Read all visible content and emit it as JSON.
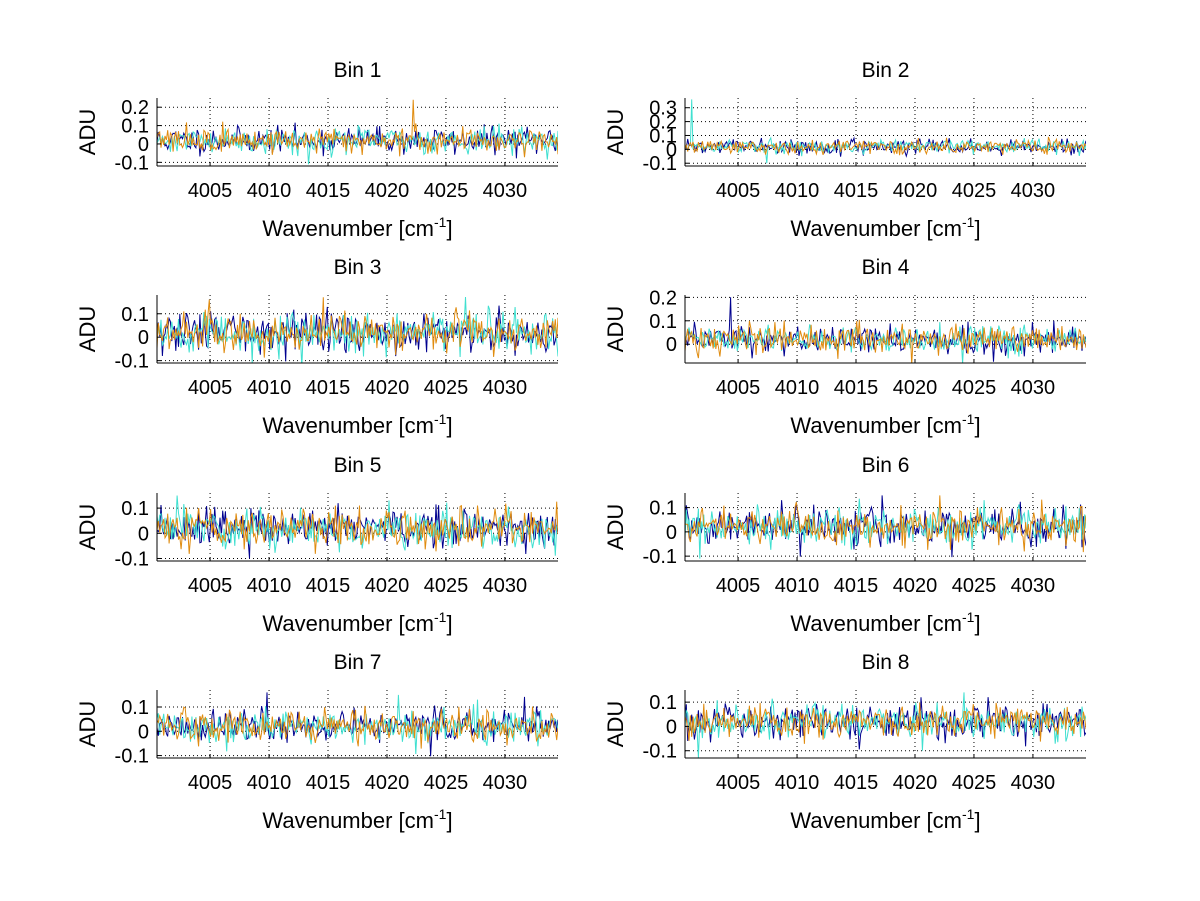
{
  "chart_data": [
    {
      "type": "line",
      "title": "Bin 1",
      "xlabel": "Wavenumber [cm",
      "xlabel_superscript": "-1",
      "xlabel_suffix": "]",
      "ylabel": "ADU",
      "xlim": [
        4000.5,
        4034.5
      ],
      "ylim": [
        -0.12,
        0.25
      ],
      "xticks": [
        4005,
        4010,
        4015,
        4020,
        4025,
        4030
      ],
      "yticks": [
        -0.1,
        0,
        0.1,
        0.2
      ],
      "ytick_labels": [
        "-0.1",
        "0",
        "0.1",
        "0.2"
      ],
      "grid": true,
      "series_count": 3,
      "noise_amplitude": 0.05,
      "seed": 11,
      "spikes": [
        {
          "series": 2,
          "x": 4022.2,
          "value": 0.24
        },
        {
          "series": 1,
          "x": 4013.4,
          "value": -0.11
        }
      ]
    },
    {
      "type": "line",
      "title": "Bin 2",
      "xlabel": "Wavenumber [cm",
      "xlabel_superscript": "-1",
      "xlabel_suffix": "]",
      "ylabel": "ADU",
      "xlim": [
        4000.5,
        4034.5
      ],
      "ylim": [
        -0.12,
        0.37
      ],
      "xticks": [
        4005,
        4010,
        4015,
        4020,
        4025,
        4030
      ],
      "yticks": [
        -0.1,
        0,
        0.1,
        0.2,
        0.3
      ],
      "ytick_labels": [
        "-0.1",
        "0",
        "0.1",
        "0.2",
        "0.3"
      ],
      "grid": true,
      "series_count": 3,
      "noise_amplitude": 0.035,
      "seed": 22,
      "spikes": [
        {
          "series": 1,
          "x": 4001.1,
          "value": 0.36
        },
        {
          "series": 1,
          "x": 4007.4,
          "value": -0.1
        }
      ]
    },
    {
      "type": "line",
      "title": "Bin 3",
      "xlabel": "Wavenumber [cm",
      "xlabel_superscript": "-1",
      "xlabel_suffix": "]",
      "ylabel": "ADU",
      "xlim": [
        4000.5,
        4034.5
      ],
      "ylim": [
        -0.11,
        0.18
      ],
      "xticks": [
        4005,
        4010,
        4015,
        4020,
        4025,
        4030
      ],
      "yticks": [
        -0.1,
        0,
        0.1
      ],
      "ytick_labels": [
        "-0.1",
        "0",
        "0.1"
      ],
      "grid": true,
      "series_count": 3,
      "noise_amplitude": 0.06,
      "seed": 33,
      "spikes": [
        {
          "series": 2,
          "x": 4014.6,
          "value": 0.17
        },
        {
          "series": 0,
          "x": 4001.0,
          "value": -0.08
        }
      ]
    },
    {
      "type": "line",
      "title": "Bin 4",
      "xlabel": "Wavenumber [cm",
      "xlabel_superscript": "-1",
      "xlabel_suffix": "]",
      "ylabel": "ADU",
      "xlim": [
        4000.5,
        4034.5
      ],
      "ylim": [
        -0.08,
        0.21
      ],
      "xticks": [
        4005,
        4010,
        4015,
        4020,
        4025,
        4030
      ],
      "yticks": [
        0,
        0.1,
        0.2
      ],
      "ytick_labels": [
        "0",
        "0.1",
        "0.2"
      ],
      "grid": true,
      "series_count": 3,
      "noise_amplitude": 0.045,
      "seed": 44,
      "spikes": [
        {
          "series": 0,
          "x": 4004.4,
          "value": 0.2
        },
        {
          "series": 1,
          "x": 4027.9,
          "value": -0.06
        }
      ]
    },
    {
      "type": "line",
      "title": "Bin 5",
      "xlabel": "Wavenumber [cm",
      "xlabel_superscript": "-1",
      "xlabel_suffix": "]",
      "ylabel": "ADU",
      "xlim": [
        4000.5,
        4034.5
      ],
      "ylim": [
        -0.11,
        0.16
      ],
      "xticks": [
        4005,
        4010,
        4015,
        4020,
        4025,
        4030
      ],
      "yticks": [
        -0.1,
        0,
        0.1
      ],
      "ytick_labels": [
        "-0.1",
        "0",
        "0.1"
      ],
      "grid": true,
      "series_count": 3,
      "noise_amplitude": 0.055,
      "seed": 55,
      "spikes": [
        {
          "series": 1,
          "x": 4002.2,
          "value": 0.15
        },
        {
          "series": 0,
          "x": 4008.3,
          "value": -0.1
        }
      ]
    },
    {
      "type": "line",
      "title": "Bin 6",
      "xlabel": "Wavenumber [cm",
      "xlabel_superscript": "-1",
      "xlabel_suffix": "]",
      "ylabel": "ADU",
      "xlim": [
        4000.5,
        4034.5
      ],
      "ylim": [
        -0.12,
        0.16
      ],
      "xticks": [
        4005,
        4010,
        4015,
        4020,
        4025,
        4030
      ],
      "yticks": [
        -0.1,
        0,
        0.1
      ],
      "ytick_labels": [
        "-0.1",
        "0",
        "0.1"
      ],
      "grid": true,
      "series_count": 3,
      "noise_amplitude": 0.055,
      "seed": 66,
      "spikes": [
        {
          "series": 0,
          "x": 4017.2,
          "value": 0.15
        },
        {
          "series": 2,
          "x": 4022.1,
          "value": 0.15
        },
        {
          "series": 1,
          "x": 4001.8,
          "value": -0.11
        }
      ]
    },
    {
      "type": "line",
      "title": "Bin 7",
      "xlabel": "Wavenumber [cm",
      "xlabel_superscript": "-1",
      "xlabel_suffix": "]",
      "ylabel": "ADU",
      "xlim": [
        4000.5,
        4034.5
      ],
      "ylim": [
        -0.11,
        0.17
      ],
      "xticks": [
        4005,
        4010,
        4015,
        4020,
        4025,
        4030
      ],
      "yticks": [
        -0.1,
        0,
        0.1
      ],
      "ytick_labels": [
        "-0.1",
        "0",
        "0.1"
      ],
      "grid": true,
      "series_count": 3,
      "noise_amplitude": 0.05,
      "seed": 77,
      "spikes": [
        {
          "series": 0,
          "x": 4009.8,
          "value": 0.16
        },
        {
          "series": 1,
          "x": 4021.0,
          "value": 0.15
        }
      ]
    },
    {
      "type": "line",
      "title": "Bin 8",
      "xlabel": "Wavenumber [cm",
      "xlabel_superscript": "-1",
      "xlabel_suffix": "]",
      "ylabel": "ADU",
      "xlim": [
        4000.5,
        4034.5
      ],
      "ylim": [
        -0.13,
        0.15
      ],
      "xticks": [
        4005,
        4010,
        4015,
        4020,
        4025,
        4030
      ],
      "yticks": [
        -0.1,
        0,
        0.1
      ],
      "ytick_labels": [
        "-0.1",
        "0",
        "0.1"
      ],
      "grid": true,
      "series_count": 3,
      "noise_amplitude": 0.05,
      "seed": 88,
      "spikes": [
        {
          "series": 1,
          "x": 4001.6,
          "value": -0.13
        },
        {
          "series": 1,
          "x": 4024.1,
          "value": 0.14
        },
        {
          "series": 1,
          "x": 4020.6,
          "value": -0.1
        }
      ]
    }
  ],
  "series_colors": [
    "#00008f",
    "#40e0d0",
    "#e08c10"
  ],
  "axis_color": "#000000",
  "grid_color": "#000000"
}
